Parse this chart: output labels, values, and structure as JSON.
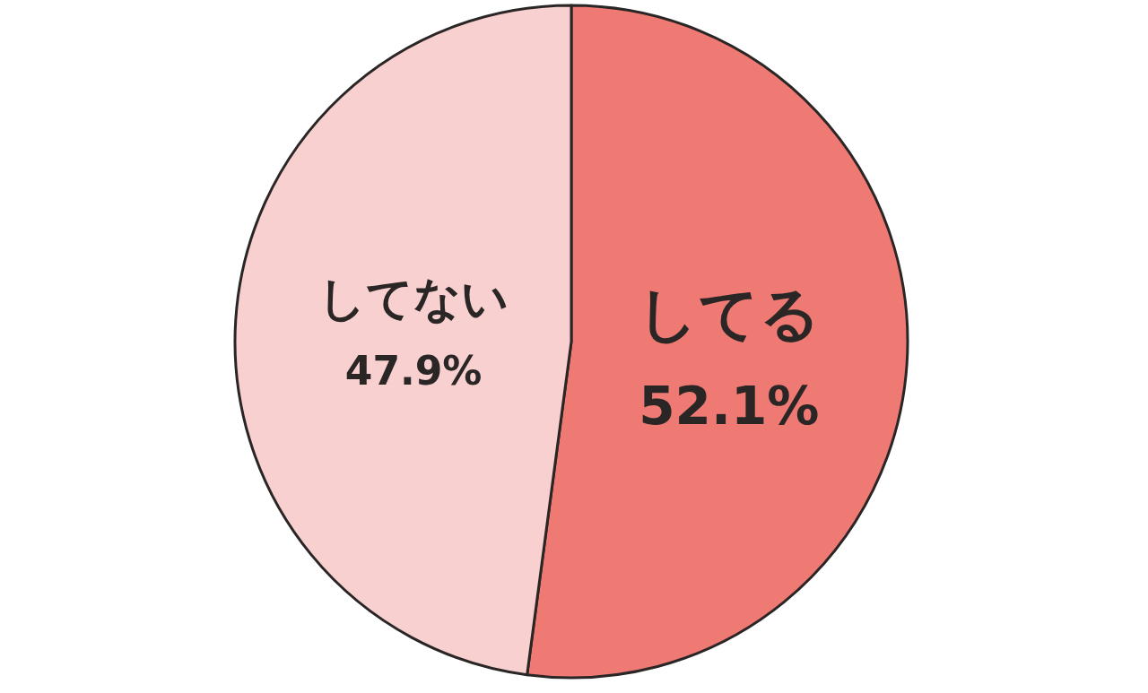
{
  "chart_data": {
    "type": "pie",
    "categories": [
      "してる",
      "してない"
    ],
    "values": [
      52.1,
      47.9
    ],
    "colors": [
      "#ef7a74",
      "#f8d0cf"
    ],
    "value_labels": [
      "52.1%",
      "47.9%"
    ]
  }
}
